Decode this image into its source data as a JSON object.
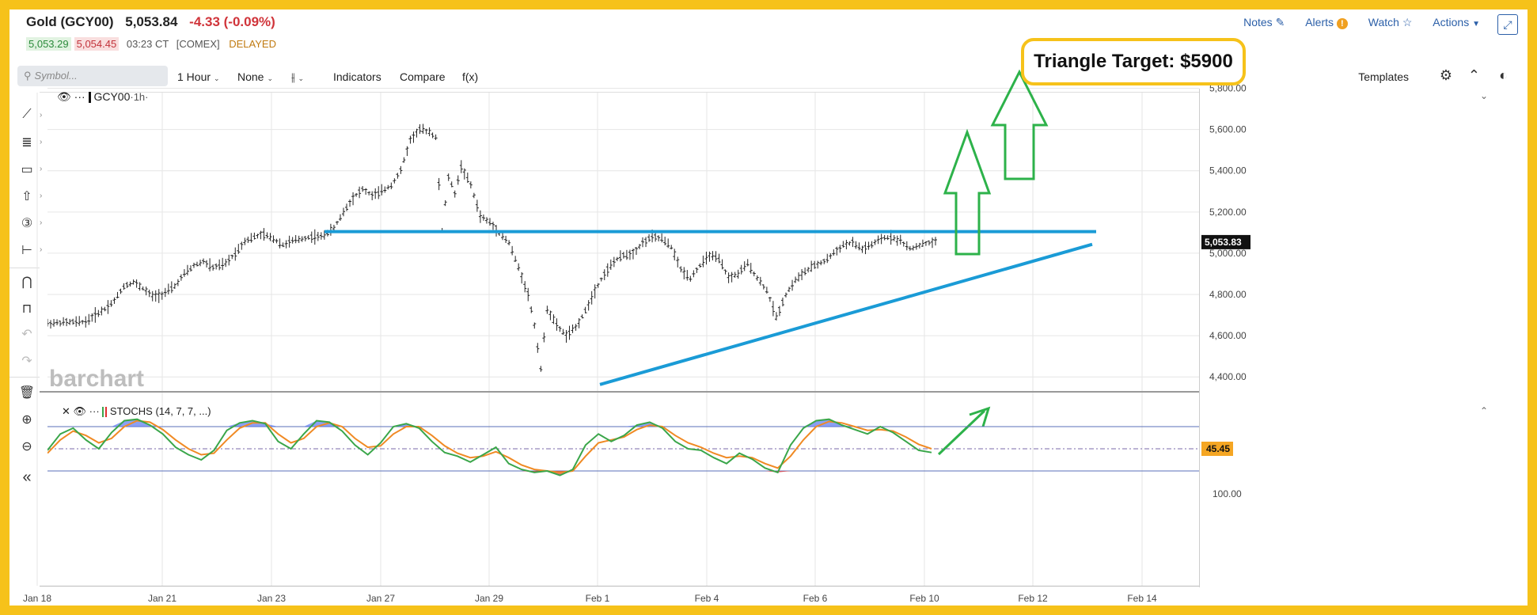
{
  "header": {
    "name": "Gold (GCY00)",
    "last": "5,053.84",
    "change": "-4.33 (-0.09%)",
    "bid": "5,053.29",
    "ask": "5,054.45",
    "time": "03:23 CT",
    "exchange": "[COMEX]",
    "delayed": "DELAYED"
  },
  "top_links": {
    "notes": "Notes",
    "alerts": "Alerts",
    "watch": "Watch",
    "actions": "Actions"
  },
  "toolbar": {
    "search_placeholder": "Symbol...",
    "interval": "1 Hour",
    "study_type": "None",
    "indicators": "Indicators",
    "compare": "Compare",
    "fx": "f(x)",
    "templates": "Templates"
  },
  "annotation": "Triangle Target: $5900",
  "watermark": "barchart",
  "chart_data": [
    {
      "type": "candlestick",
      "legend": "GCY00",
      "interval": "·1h·",
      "x_ticks": [
        "Jan 18",
        "Jan 21",
        "Jan 23",
        "Jan 27",
        "Jan 29",
        "Feb 1",
        "Feb 4",
        "Feb 6",
        "Feb 10",
        "Feb 12",
        "Feb 14"
      ],
      "y_ticks": [
        "5,800.00",
        "5,600.00",
        "5,400.00",
        "5,200.00",
        "5,000.00",
        "4,800.00",
        "4,600.00",
        "4,400.00"
      ],
      "ylim": [
        4400,
        5800
      ],
      "last_price_label": "5,053.83",
      "last_price": 5053.83,
      "price_path": [
        [
          0,
          4660
        ],
        [
          6,
          4665
        ],
        [
          12,
          4668
        ],
        [
          15,
          4700
        ],
        [
          18,
          4730
        ],
        [
          21,
          4770
        ],
        [
          24,
          4840
        ],
        [
          27,
          4860
        ],
        [
          30,
          4830
        ],
        [
          33,
          4790
        ],
        [
          36,
          4800
        ],
        [
          40,
          4840
        ],
        [
          43,
          4900
        ],
        [
          46,
          4940
        ],
        [
          49,
          4960
        ],
        [
          52,
          4930
        ],
        [
          56,
          4950
        ],
        [
          59,
          5000
        ],
        [
          62,
          5060
        ],
        [
          65,
          5080
        ],
        [
          68,
          5090
        ],
        [
          71,
          5070
        ],
        [
          74,
          5040
        ],
        [
          77,
          5060
        ],
        [
          80,
          5070
        ],
        [
          83,
          5080
        ],
        [
          86,
          5080
        ],
        [
          90,
          5120
        ],
        [
          93,
          5200
        ],
        [
          96,
          5270
        ],
        [
          99,
          5310
        ],
        [
          102,
          5280
        ],
        [
          105,
          5300
        ],
        [
          108,
          5330
        ],
        [
          111,
          5400
        ],
        [
          114,
          5550
        ],
        [
          117,
          5600
        ],
        [
          120,
          5590
        ],
        [
          122,
          5560
        ],
        [
          124,
          5110
        ],
        [
          126,
          5370
        ],
        [
          128,
          5290
        ],
        [
          130,
          5420
        ],
        [
          133,
          5330
        ],
        [
          136,
          5180
        ],
        [
          139,
          5150
        ],
        [
          142,
          5100
        ],
        [
          145,
          5050
        ],
        [
          148,
          4930
        ],
        [
          151,
          4800
        ],
        [
          153,
          4650
        ],
        [
          155,
          4440
        ],
        [
          157,
          4730
        ],
        [
          160,
          4650
        ],
        [
          163,
          4600
        ],
        [
          166,
          4640
        ],
        [
          169,
          4720
        ],
        [
          172,
          4820
        ],
        [
          175,
          4900
        ],
        [
          178,
          4960
        ],
        [
          181,
          4990
        ],
        [
          184,
          5000
        ],
        [
          187,
          5050
        ],
        [
          190,
          5080
        ],
        [
          193,
          5070
        ],
        [
          196,
          5030
        ],
        [
          199,
          4920
        ],
        [
          202,
          4880
        ],
        [
          205,
          4940
        ],
        [
          208,
          4990
        ],
        [
          211,
          4970
        ],
        [
          214,
          4880
        ],
        [
          217,
          4900
        ],
        [
          220,
          4950
        ],
        [
          223,
          4880
        ],
        [
          226,
          4820
        ],
        [
          229,
          4690
        ],
        [
          232,
          4800
        ],
        [
          235,
          4870
        ],
        [
          238,
          4910
        ],
        [
          241,
          4940
        ],
        [
          244,
          4960
        ],
        [
          247,
          5000
        ],
        [
          250,
          5040
        ],
        [
          253,
          5050
        ],
        [
          256,
          5020
        ],
        [
          259,
          5040
        ],
        [
          262,
          5070
        ],
        [
          265,
          5080
        ],
        [
          268,
          5060
        ],
        [
          271,
          5020
        ],
        [
          274,
          5040
        ],
        [
          277,
          5050
        ],
        [
          279,
          5054
        ]
      ],
      "horizontal_resistance": 5105,
      "rising_support": [
        [
          5.9,
          4390
        ],
        [
          8.1,
          5070
        ]
      ],
      "target": 5900
    },
    {
      "type": "line",
      "legend": "STOCHS (14, 7, 7, ...)",
      "ylim": [
        0,
        100
      ],
      "y_tick": "100.00",
      "levels": [
        80,
        50,
        20
      ],
      "last_value_label": "45.45",
      "k_path": [
        [
          0,
          48
        ],
        [
          4,
          70
        ],
        [
          8,
          78
        ],
        [
          12,
          62
        ],
        [
          16,
          50
        ],
        [
          20,
          72
        ],
        [
          24,
          88
        ],
        [
          28,
          90
        ],
        [
          32,
          82
        ],
        [
          36,
          70
        ],
        [
          40,
          52
        ],
        [
          44,
          42
        ],
        [
          48,
          35
        ],
        [
          52,
          48
        ],
        [
          56,
          75
        ],
        [
          60,
          85
        ],
        [
          64,
          88
        ],
        [
          68,
          84
        ],
        [
          72,
          60
        ],
        [
          76,
          50
        ],
        [
          80,
          70
        ],
        [
          84,
          88
        ],
        [
          88,
          86
        ],
        [
          92,
          74
        ],
        [
          96,
          55
        ],
        [
          100,
          42
        ],
        [
          104,
          58
        ],
        [
          108,
          80
        ],
        [
          112,
          84
        ],
        [
          116,
          78
        ],
        [
          120,
          60
        ],
        [
          124,
          45
        ],
        [
          128,
          40
        ],
        [
          132,
          32
        ],
        [
          136,
          42
        ],
        [
          140,
          52
        ],
        [
          144,
          30
        ],
        [
          148,
          22
        ],
        [
          152,
          18
        ],
        [
          156,
          20
        ],
        [
          160,
          14
        ],
        [
          164,
          22
        ],
        [
          168,
          55
        ],
        [
          172,
          70
        ],
        [
          176,
          60
        ],
        [
          180,
          68
        ],
        [
          184,
          82
        ],
        [
          188,
          86
        ],
        [
          192,
          78
        ],
        [
          196,
          60
        ],
        [
          200,
          50
        ],
        [
          204,
          48
        ],
        [
          208,
          38
        ],
        [
          212,
          30
        ],
        [
          216,
          44
        ],
        [
          220,
          36
        ],
        [
          224,
          24
        ],
        [
          228,
          18
        ],
        [
          232,
          55
        ],
        [
          236,
          78
        ],
        [
          240,
          88
        ],
        [
          244,
          90
        ],
        [
          248,
          82
        ],
        [
          252,
          76
        ],
        [
          256,
          70
        ],
        [
          260,
          80
        ],
        [
          264,
          72
        ],
        [
          268,
          60
        ],
        [
          272,
          48
        ],
        [
          276,
          45
        ]
      ],
      "d_path": [
        [
          0,
          44
        ],
        [
          4,
          62
        ],
        [
          8,
          74
        ],
        [
          12,
          68
        ],
        [
          16,
          58
        ],
        [
          20,
          64
        ],
        [
          24,
          80
        ],
        [
          28,
          88
        ],
        [
          32,
          86
        ],
        [
          36,
          76
        ],
        [
          40,
          62
        ],
        [
          44,
          50
        ],
        [
          48,
          42
        ],
        [
          52,
          44
        ],
        [
          56,
          62
        ],
        [
          60,
          78
        ],
        [
          64,
          85
        ],
        [
          68,
          85
        ],
        [
          72,
          70
        ],
        [
          76,
          58
        ],
        [
          80,
          64
        ],
        [
          84,
          80
        ],
        [
          88,
          85
        ],
        [
          92,
          80
        ],
        [
          96,
          64
        ],
        [
          100,
          52
        ],
        [
          104,
          54
        ],
        [
          108,
          70
        ],
        [
          112,
          80
        ],
        [
          116,
          80
        ],
        [
          120,
          68
        ],
        [
          124,
          54
        ],
        [
          128,
          44
        ],
        [
          132,
          38
        ],
        [
          136,
          40
        ],
        [
          140,
          46
        ],
        [
          144,
          38
        ],
        [
          148,
          28
        ],
        [
          152,
          22
        ],
        [
          156,
          20
        ],
        [
          160,
          18
        ],
        [
          164,
          20
        ],
        [
          168,
          40
        ],
        [
          172,
          58
        ],
        [
          176,
          62
        ],
        [
          180,
          66
        ],
        [
          184,
          76
        ],
        [
          188,
          82
        ],
        [
          192,
          80
        ],
        [
          196,
          68
        ],
        [
          200,
          58
        ],
        [
          204,
          52
        ],
        [
          208,
          44
        ],
        [
          212,
          38
        ],
        [
          216,
          40
        ],
        [
          220,
          38
        ],
        [
          224,
          30
        ],
        [
          228,
          24
        ],
        [
          232,
          40
        ],
        [
          236,
          62
        ],
        [
          240,
          80
        ],
        [
          244,
          87
        ],
        [
          248,
          85
        ],
        [
          252,
          80
        ],
        [
          256,
          75
        ],
        [
          260,
          76
        ],
        [
          264,
          74
        ],
        [
          268,
          66
        ],
        [
          272,
          56
        ],
        [
          276,
          50
        ]
      ]
    }
  ],
  "colors": {
    "resistance": "#1a9bd6",
    "arrows": "#2db24a",
    "k_line": "#3aa64a",
    "d_line": "#f08a24",
    "overbought_fill": "#5a78f0",
    "oversold_fill": "#e03030",
    "bar": "#222222"
  }
}
